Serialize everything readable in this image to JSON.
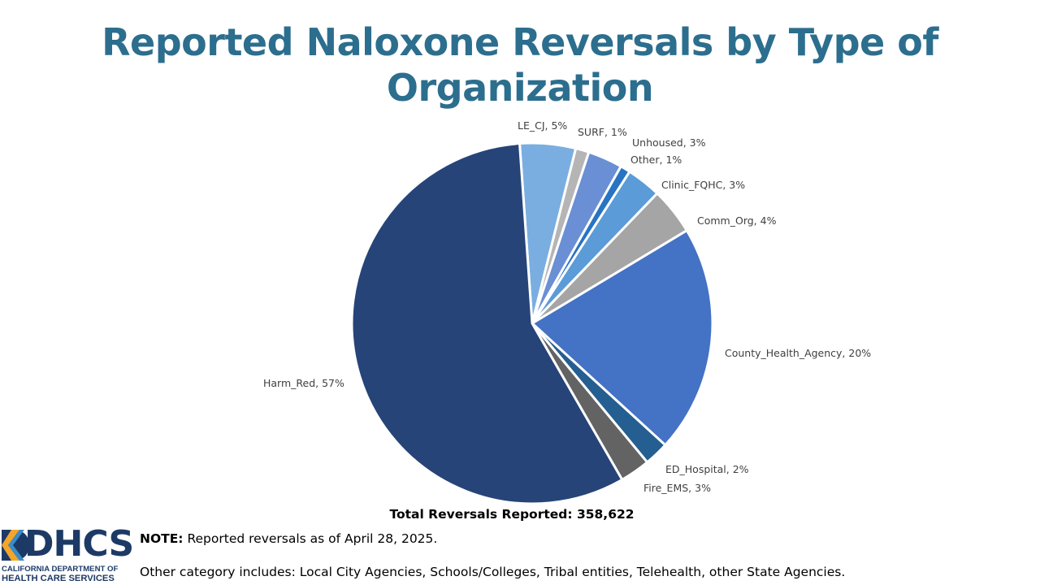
{
  "slide": {
    "title": "Reported Naloxone Reversals by Type of Organization",
    "total_label": "Total Reversals Reported: 358,622",
    "note_prefix": "NOTE:",
    "note_text": " Reported reversals as of April 28, 2025.",
    "other_note": "Other category includes: Local City Agencies, Schools/Colleges, Tribal entities, Telehealth, other State Agencies."
  },
  "logo": {
    "text": "DHCS",
    "line1": "CALIFORNIA DEPARTMENT OF",
    "line2": "HEALTH CARE SERVICES"
  },
  "chart_data": {
    "type": "pie",
    "start_angle_deg": -4,
    "slices": [
      {
        "label": "LE_CJ, 5%",
        "category": "LE_CJ",
        "value": 5,
        "color": "#7aaee0"
      },
      {
        "label": "SURF, 1%",
        "category": "SURF",
        "value": 1.2,
        "color": "#b5b5b5"
      },
      {
        "label": "Unhoused, 3%",
        "category": "Unhoused",
        "value": 3.1,
        "color": "#6a8fd4"
      },
      {
        "label": "Other, 1%",
        "category": "Other",
        "value": 0.9,
        "color": "#2873c4"
      },
      {
        "label": "Clinic_FQHC, 3%",
        "category": "Clinic_FQHC",
        "value": 3.1,
        "color": "#5b9bd8"
      },
      {
        "label": "Comm_Org, 4%",
        "category": "Comm_Org",
        "value": 4.2,
        "color": "#a5a5a5"
      },
      {
        "label": "County_Health_Agency, 20%",
        "category": "County_Health_Agency",
        "value": 20.4,
        "color": "#4472c4"
      },
      {
        "label": "ED_Hospital, 2%",
        "category": "ED_Hospital",
        "value": 2.2,
        "color": "#255e91"
      },
      {
        "label": "Fire_EMS, 3%",
        "category": "Fire_EMS",
        "value": 2.7,
        "color": "#636363"
      },
      {
        "label": "Harm_Red, 57%",
        "category": "Harm_Red",
        "value": 57.2,
        "color": "#264478"
      }
    ]
  }
}
